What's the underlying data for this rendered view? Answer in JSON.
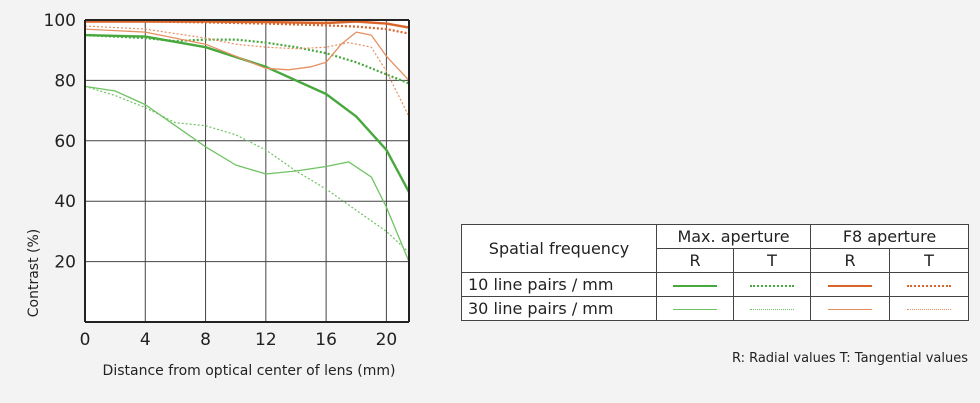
{
  "chart_data": {
    "type": "line",
    "title": "",
    "xlabel": "Distance from optical center of lens (mm)",
    "ylabel": "Contrast (%)",
    "xlim": [
      0,
      21.5
    ],
    "ylim": [
      0,
      100
    ],
    "x_ticks": [
      "0",
      "4",
      "8",
      "12",
      "16",
      "20"
    ],
    "y_ticks": [
      "20",
      "40",
      "60",
      "80",
      "100"
    ],
    "grid": true,
    "series": [
      {
        "aperture": "Max. aperture",
        "frequency": "10 line pairs / mm",
        "kind": "R",
        "color": "#48a83e",
        "width": 2.4,
        "dash": "",
        "points": [
          [
            0,
            95
          ],
          [
            4,
            94.5
          ],
          [
            8,
            91
          ],
          [
            12,
            84.5
          ],
          [
            16,
            75.5
          ],
          [
            18,
            68
          ],
          [
            20,
            57
          ],
          [
            21.5,
            43
          ]
        ]
      },
      {
        "aperture": "Max. aperture",
        "frequency": "10 line pairs / mm",
        "kind": "T",
        "color": "#48a83e",
        "width": 2.2,
        "dash": "2 2",
        "points": [
          [
            0,
            95
          ],
          [
            4,
            94
          ],
          [
            6,
            93
          ],
          [
            8,
            93.5
          ],
          [
            10,
            93.5
          ],
          [
            12,
            92.5
          ],
          [
            14,
            91
          ],
          [
            16,
            89
          ],
          [
            18,
            86
          ],
          [
            20,
            82
          ],
          [
            21.5,
            79
          ]
        ]
      },
      {
        "aperture": "Max. aperture",
        "frequency": "30 line pairs / mm",
        "kind": "R",
        "color": "#6fc263",
        "width": 1.3,
        "dash": "",
        "points": [
          [
            0,
            78
          ],
          [
            2,
            76.5
          ],
          [
            4,
            72
          ],
          [
            6,
            65
          ],
          [
            8,
            58
          ],
          [
            10,
            52
          ],
          [
            12,
            49
          ],
          [
            14,
            50
          ],
          [
            16,
            51.5
          ],
          [
            17.5,
            53
          ],
          [
            19,
            48
          ],
          [
            20,
            38
          ],
          [
            21.5,
            20
          ]
        ]
      },
      {
        "aperture": "Max. aperture",
        "frequency": "30 line pairs / mm",
        "kind": "T",
        "color": "#6fc263",
        "width": 1.2,
        "dash": "2 2",
        "points": [
          [
            0,
            78
          ],
          [
            2,
            75
          ],
          [
            4,
            71
          ],
          [
            6,
            66
          ],
          [
            8,
            65
          ],
          [
            10,
            62
          ],
          [
            12,
            57
          ],
          [
            14,
            50
          ],
          [
            16,
            44
          ],
          [
            18,
            37
          ],
          [
            20,
            30
          ],
          [
            21.5,
            23
          ]
        ]
      },
      {
        "aperture": "F8 aperture",
        "frequency": "10 line pairs / mm",
        "kind": "R",
        "color": "#d9652a",
        "width": 2.4,
        "dash": "",
        "points": [
          [
            0,
            99.5
          ],
          [
            4,
            99.5
          ],
          [
            8,
            99.5
          ],
          [
            12,
            99.3
          ],
          [
            16,
            99
          ],
          [
            18,
            99.5
          ],
          [
            20,
            98.8
          ],
          [
            21.5,
            97.5
          ]
        ]
      },
      {
        "aperture": "F8 aperture",
        "frequency": "10 line pairs / mm",
        "kind": "T",
        "color": "#d9652a",
        "width": 2.2,
        "dash": "2 2",
        "points": [
          [
            0,
            99.5
          ],
          [
            4,
            99.5
          ],
          [
            8,
            99.2
          ],
          [
            12,
            98.8
          ],
          [
            16,
            98.2
          ],
          [
            18,
            97.8
          ],
          [
            20,
            97
          ],
          [
            21.5,
            95.5
          ]
        ]
      },
      {
        "aperture": "F8 aperture",
        "frequency": "30 line pairs / mm",
        "kind": "R",
        "color": "#e69061",
        "width": 1.3,
        "dash": "",
        "points": [
          [
            0,
            97
          ],
          [
            4,
            96
          ],
          [
            8,
            92
          ],
          [
            10,
            88
          ],
          [
            12,
            84
          ],
          [
            13.5,
            83.5
          ],
          [
            15,
            84.5
          ],
          [
            16,
            86
          ],
          [
            17,
            92
          ],
          [
            18,
            96
          ],
          [
            19,
            95
          ],
          [
            20,
            88
          ],
          [
            21.5,
            80
          ]
        ]
      },
      {
        "aperture": "F8 aperture",
        "frequency": "30 line pairs / mm",
        "kind": "T",
        "color": "#e69061",
        "width": 1.2,
        "dash": "2 2",
        "points": [
          [
            0,
            98
          ],
          [
            4,
            97
          ],
          [
            8,
            94
          ],
          [
            10,
            92
          ],
          [
            12,
            91
          ],
          [
            14,
            90.5
          ],
          [
            16,
            91
          ],
          [
            17.5,
            92.5
          ],
          [
            19,
            91
          ],
          [
            20,
            83
          ],
          [
            21.5,
            68
          ]
        ]
      }
    ]
  },
  "legend": {
    "spatial_frequency_label": "Spatial frequency",
    "col_max": "Max. aperture",
    "col_f8": "F8 aperture",
    "r": "R",
    "t": "T",
    "row10": "10 line pairs / mm",
    "row30": "30 line pairs / mm"
  },
  "note": "R: Radial values  T: Tangential values"
}
